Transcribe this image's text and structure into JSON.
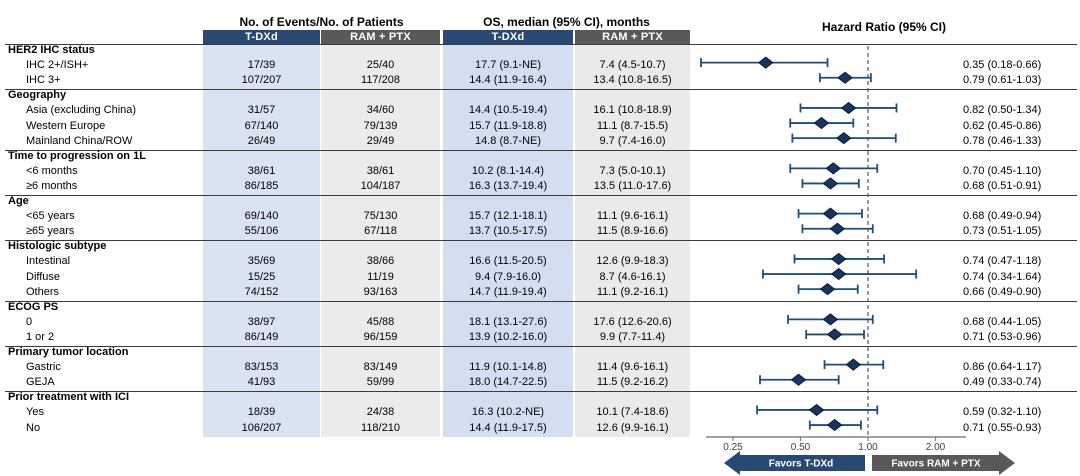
{
  "header": {
    "events_header": "No. of Events/No. of Patients",
    "os_header": "OS, median (95% CI), months",
    "hr_header": "Hazard Ratio (95% CI)",
    "col_tdxd": "T-DXd",
    "col_ram": "RAM + PTX"
  },
  "footer": {
    "favors_left": "Favors T-DXd",
    "favors_right": "Favors RAM + PTX"
  },
  "colors": {
    "navy": "#2A4972",
    "gray": "#595959",
    "col_blue_events": "#DAE3F2",
    "col_blue_os": "#D3DFF1",
    "col_gray_events": "#EBEBEB",
    "col_gray_os": "#EAEAEA",
    "diamond_fill": "#17355F",
    "diamond_stroke": "#0A1B36",
    "whisker": "#1F4E79",
    "axis_line": "#808080",
    "ref_line": "#555555",
    "tick_text": "#3F3F3F"
  },
  "chart_data": {
    "type": "forest",
    "x_axis": {
      "scale": "log",
      "ticks": [
        0.25,
        0.5,
        1.0,
        2.0
      ],
      "tick_labels": [
        "0.25",
        "0.50",
        "1.00",
        "2.00"
      ],
      "reference_line": 1.0
    },
    "groups": [
      {
        "label": "HER2 IHC status",
        "rows": [
          {
            "label": "IHC 2+/ISH+",
            "events_tdxd": "17/39",
            "events_ram": "25/40",
            "os_tdxd": "17.7 (9.1-NE)",
            "os_ram": "7.4 (4.5-10.7)",
            "hr_text": "0.35 (0.18-0.66)",
            "hr": 0.35,
            "ci": [
              0.18,
              0.66
            ]
          },
          {
            "label": "IHC 3+",
            "events_tdxd": "107/207",
            "events_ram": "117/208",
            "os_tdxd": "14.4 (11.9-16.4)",
            "os_ram": "13.4 (10.8-16.5)",
            "hr_text": "0.79 (0.61-1.03)",
            "hr": 0.79,
            "ci": [
              0.61,
              1.03
            ]
          }
        ]
      },
      {
        "label": "Geography",
        "rows": [
          {
            "label": "Asia (excluding China)",
            "events_tdxd": "31/57",
            "events_ram": "34/60",
            "os_tdxd": "14.4 (10.5-19.4)",
            "os_ram": "16.1 (10.8-18.9)",
            "hr_text": "0.82 (0.50-1.34)",
            "hr": 0.82,
            "ci": [
              0.5,
              1.34
            ]
          },
          {
            "label": "Western Europe",
            "events_tdxd": "67/140",
            "events_ram": "79/139",
            "os_tdxd": "15.7 (11.9-18.8)",
            "os_ram": "11.1 (8.7-15.5)",
            "hr_text": "0.62 (0.45-0.86)",
            "hr": 0.62,
            "ci": [
              0.45,
              0.86
            ]
          },
          {
            "label": "Mainland China/ROW",
            "events_tdxd": "26/49",
            "events_ram": "29/49",
            "os_tdxd": "14.8 (8.7-NE)",
            "os_ram": "9.7 (7.4-16.0)",
            "hr_text": "0.78 (0.46-1.33)",
            "hr": 0.78,
            "ci": [
              0.46,
              1.33
            ]
          }
        ]
      },
      {
        "label": "Time to progression on 1L",
        "rows": [
          {
            "label": "<6 months",
            "events_tdxd": "38/61",
            "events_ram": "38/61",
            "os_tdxd": "10.2 (8.1-14.4)",
            "os_ram": "7.3 (5.0-10.1)",
            "hr_text": "0.70 (0.45-1.10)",
            "hr": 0.7,
            "ci": [
              0.45,
              1.1
            ]
          },
          {
            "label": "≥6 months",
            "events_tdxd": "86/185",
            "events_ram": "104/187",
            "os_tdxd": "16.3 (13.7-19.4)",
            "os_ram": "13.5 (11.0-17.6)",
            "hr_text": "0.68 (0.51-0.91)",
            "hr": 0.68,
            "ci": [
              0.51,
              0.91
            ]
          }
        ]
      },
      {
        "label": "Age",
        "rows": [
          {
            "label": "<65 years",
            "events_tdxd": "69/140",
            "events_ram": "75/130",
            "os_tdxd": "15.7 (12.1-18.1)",
            "os_ram": "11.1 (9.6-16.1)",
            "hr_text": "0.68 (0.49-0.94)",
            "hr": 0.68,
            "ci": [
              0.49,
              0.94
            ]
          },
          {
            "label": "≥65 years",
            "events_tdxd": "55/106",
            "events_ram": "67/118",
            "os_tdxd": "13.7 (10.5-17.5)",
            "os_ram": "11.5 (8.9-16.6)",
            "hr_text": "0.73 (0.51-1.05)",
            "hr": 0.73,
            "ci": [
              0.51,
              1.05
            ]
          }
        ]
      },
      {
        "label": "Histologic subtype",
        "rows": [
          {
            "label": "Intestinal",
            "events_tdxd": "35/69",
            "events_ram": "38/66",
            "os_tdxd": "16.6 (11.5-20.5)",
            "os_ram": "12.6 (9.9-18.3)",
            "hr_text": "0.74 (0.47-1.18)",
            "hr": 0.74,
            "ci": [
              0.47,
              1.18
            ]
          },
          {
            "label": "Diffuse",
            "events_tdxd": "15/25",
            "events_ram": "11/19",
            "os_tdxd": "9.4 (7.9-16.0)",
            "os_ram": "8.7 (4.6-16.1)",
            "hr_text": "0.74 (0.34-1.64)",
            "hr": 0.74,
            "ci": [
              0.34,
              1.64
            ]
          },
          {
            "label": "Others",
            "events_tdxd": "74/152",
            "events_ram": "93/163",
            "os_tdxd": "14.7 (11.9-19.4)",
            "os_ram": "11.1 (9.2-16.1)",
            "hr_text": "0.66 (0.49-0.90)",
            "hr": 0.66,
            "ci": [
              0.49,
              0.9
            ]
          }
        ]
      },
      {
        "label": "ECOG PS",
        "rows": [
          {
            "label": "0",
            "events_tdxd": "38/97",
            "events_ram": "45/88",
            "os_tdxd": "18.1 (13.1-27.6)",
            "os_ram": "17.6 (12.6-20.6)",
            "hr_text": "0.68 (0.44-1.05)",
            "hr": 0.68,
            "ci": [
              0.44,
              1.05
            ]
          },
          {
            "label": "1 or 2",
            "events_tdxd": "86/149",
            "events_ram": "96/159",
            "os_tdxd": "13.9 (10.2-16.0)",
            "os_ram": "9.9 (7.7-11.4)",
            "hr_text": "0.71 (0.53-0.96)",
            "hr": 0.71,
            "ci": [
              0.53,
              0.96
            ]
          }
        ]
      },
      {
        "label": "Primary tumor location",
        "rows": [
          {
            "label": "Gastric",
            "events_tdxd": "83/153",
            "events_ram": "83/149",
            "os_tdxd": "11.9 (10.1-14.8)",
            "os_ram": "11.4 (9.6-16.1)",
            "hr_text": "0.86 (0.64-1.17)",
            "hr": 0.86,
            "ci": [
              0.64,
              1.17
            ]
          },
          {
            "label": "GEJA",
            "events_tdxd": "41/93",
            "events_ram": "59/99",
            "os_tdxd": "18.0 (14.7-22.5)",
            "os_ram": "11.5 (9.2-16.2)",
            "hr_text": "0.49 (0.33-0.74)",
            "hr": 0.49,
            "ci": [
              0.33,
              0.74
            ]
          }
        ]
      },
      {
        "label": "Prior treatment with ICI",
        "rows": [
          {
            "label": "Yes",
            "events_tdxd": "18/39",
            "events_ram": "24/38",
            "os_tdxd": "16.3 (10.2-NE)",
            "os_ram": "10.1 (7.4-18.6)",
            "hr_text": "0.59 (0.32-1.10)",
            "hr": 0.59,
            "ci": [
              0.32,
              1.1
            ]
          },
          {
            "label": "No",
            "events_tdxd": "106/207",
            "events_ram": "118/210",
            "os_tdxd": "14.4 (11.9-17.5)",
            "os_ram": "12.6 (9.9-16.1)",
            "hr_text": "0.71 (0.55-0.93)",
            "hr": 0.71,
            "ci": [
              0.55,
              0.93
            ]
          }
        ]
      }
    ]
  }
}
